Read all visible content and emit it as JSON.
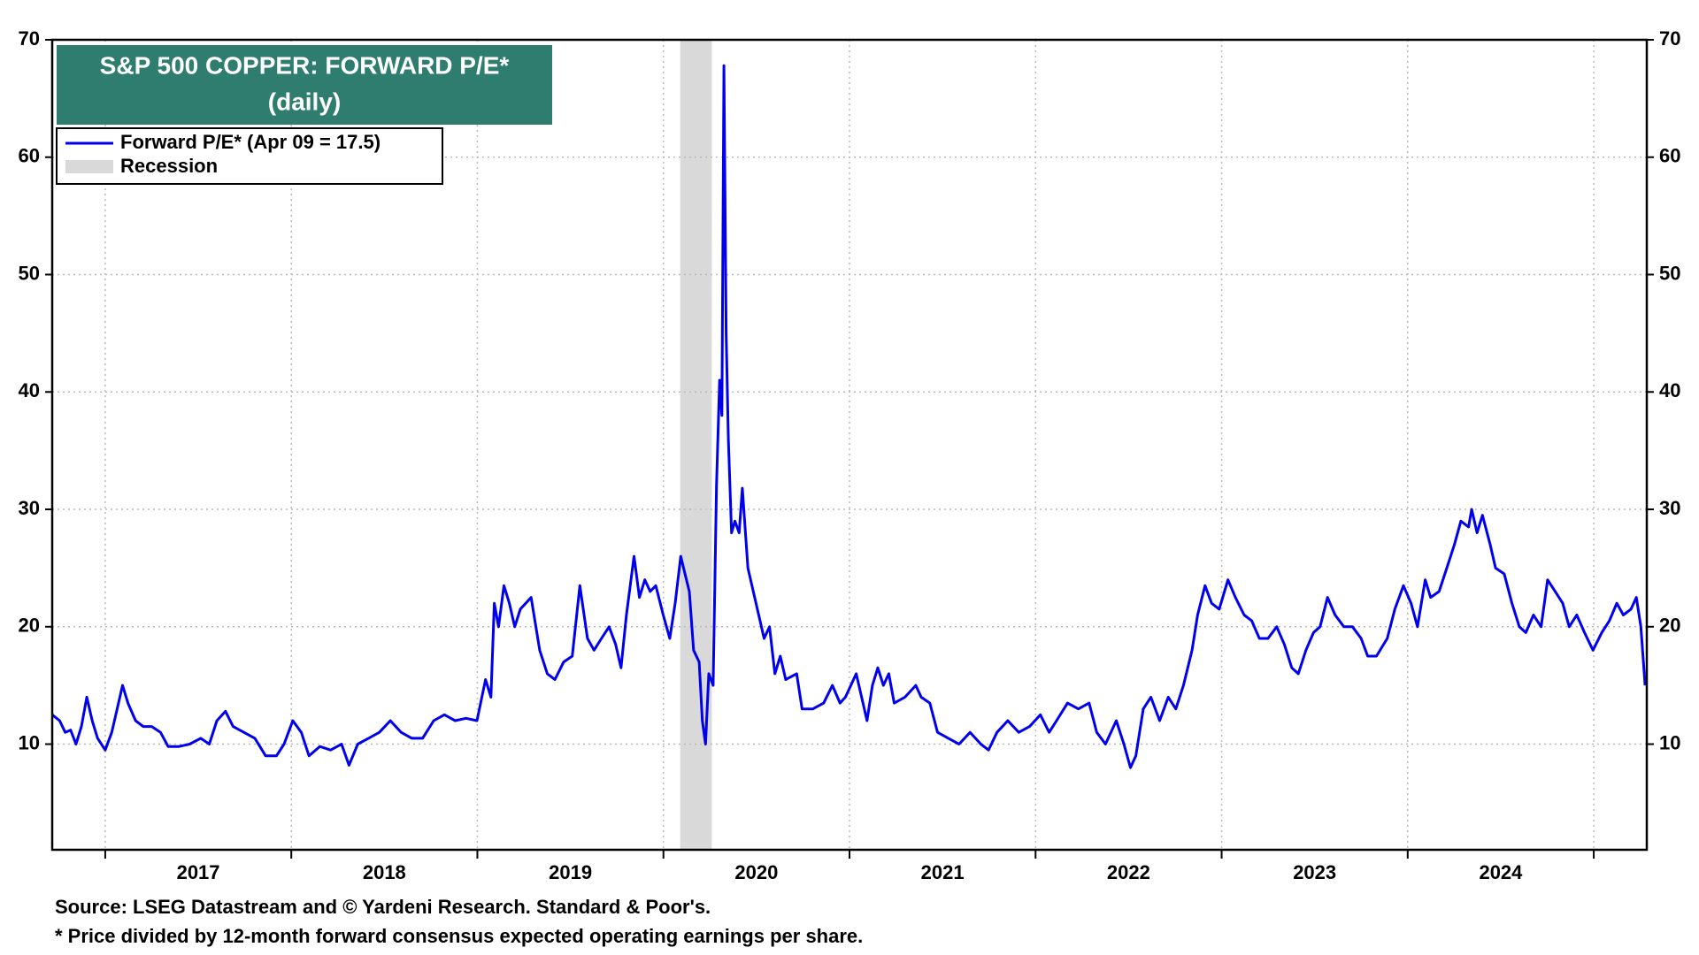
{
  "chart_data": {
    "type": "line",
    "title": "S&P 500 COPPER: FORWARD P/E*",
    "subtitle": "(daily)",
    "source": "Source: LSEG Datastream and © Yardeni Research. Standard & Poor's.",
    "note": "* Price divided by 12-month forward consensus expected operating earnings per share.",
    "legend": "top-left",
    "grid": true,
    "xlim": [
      2016.715,
      2025.285
    ],
    "xgrid": [
      2017,
      2018,
      2019,
      2020,
      2021,
      2022,
      2023,
      2024,
      2025
    ],
    "xticks": [
      {
        "value": 2017.5,
        "label": "2017"
      },
      {
        "value": 2018.5,
        "label": "2018"
      },
      {
        "value": 2019.5,
        "label": "2019"
      },
      {
        "value": 2020.5,
        "label": "2020"
      },
      {
        "value": 2021.5,
        "label": "2021"
      },
      {
        "value": 2022.5,
        "label": "2022"
      },
      {
        "value": 2023.5,
        "label": "2023"
      },
      {
        "value": 2024.5,
        "label": "2024"
      }
    ],
    "ylim": [
      1,
      70
    ],
    "yticks": [
      10,
      20,
      30,
      40,
      50,
      60,
      70
    ],
    "y2lim": [
      1,
      70
    ],
    "y2ticks": [
      10,
      20,
      30,
      40,
      50,
      60,
      70
    ],
    "recession": {
      "name": "Recession",
      "color": "#d9d9d9",
      "x": [
        2020.09,
        2020.26
      ]
    },
    "x": [
      2016.715,
      2016.755,
      2016.785,
      2016.814,
      2016.843,
      2016.872,
      2016.901,
      2016.93,
      2016.959,
      2017.0,
      2017.035,
      2017.064,
      2017.093,
      2017.122,
      2017.163,
      2017.204,
      2017.25,
      2017.297,
      2017.338,
      2017.396,
      2017.454,
      2017.513,
      2017.559,
      2017.6,
      2017.646,
      2017.687,
      2017.745,
      2017.804,
      2017.862,
      2017.92,
      2017.961,
      2018.008,
      2018.054,
      2018.095,
      2018.153,
      2018.211,
      2018.27,
      2018.31,
      2018.357,
      2018.415,
      2018.473,
      2018.532,
      2018.59,
      2018.648,
      2018.706,
      2018.765,
      2018.823,
      2018.881,
      2018.939,
      2018.998,
      2019.044,
      2019.073,
      2019.091,
      2019.114,
      2019.143,
      2019.172,
      2019.201,
      2019.231,
      2019.289,
      2019.335,
      2019.376,
      2019.417,
      2019.464,
      2019.51,
      2019.551,
      2019.592,
      2019.627,
      2019.667,
      2019.708,
      2019.743,
      2019.772,
      2019.801,
      2019.842,
      2019.871,
      2019.9,
      2019.929,
      2019.959,
      2019.999,
      2020.034,
      2020.063,
      2020.093,
      2020.116,
      2020.139,
      2020.162,
      2020.192,
      2020.209,
      2020.226,
      2020.244,
      2020.267,
      2020.285,
      2020.302,
      2020.314,
      2020.325,
      2020.337,
      2020.349,
      2020.366,
      2020.384,
      2020.407,
      2020.424,
      2020.454,
      2020.483,
      2020.512,
      2020.541,
      2020.57,
      2020.599,
      2020.628,
      2020.657,
      2020.716,
      2020.745,
      2020.803,
      2020.861,
      2020.908,
      2020.949,
      2020.978,
      2021.036,
      2021.065,
      2021.094,
      2021.123,
      2021.152,
      2021.182,
      2021.211,
      2021.24,
      2021.298,
      2021.356,
      2021.385,
      2021.432,
      2021.473,
      2021.531,
      2021.589,
      2021.648,
      2021.706,
      2021.747,
      2021.793,
      2021.851,
      2021.91,
      2021.968,
      2022.026,
      2022.073,
      2022.113,
      2022.172,
      2022.23,
      2022.288,
      2022.329,
      2022.376,
      2022.434,
      2022.475,
      2022.51,
      2022.539,
      2022.579,
      2022.62,
      2022.667,
      2022.713,
      2022.754,
      2022.795,
      2022.841,
      2022.871,
      2022.911,
      2022.946,
      2022.987,
      2023.034,
      2023.074,
      2023.121,
      2023.162,
      2023.203,
      2023.249,
      2023.296,
      2023.337,
      2023.377,
      2023.412,
      2023.453,
      2023.494,
      2023.529,
      2023.569,
      2023.61,
      2023.657,
      2023.703,
      2023.75,
      2023.785,
      2023.832,
      2023.89,
      2023.931,
      2023.977,
      2024.018,
      2024.053,
      2024.094,
      2024.123,
      2024.169,
      2024.21,
      2024.251,
      2024.286,
      2024.327,
      2024.344,
      2024.373,
      2024.402,
      2024.443,
      2024.472,
      2024.519,
      2024.56,
      2024.6,
      2024.635,
      2024.676,
      2024.717,
      2024.752,
      2024.793,
      2024.833,
      2024.868,
      2024.909,
      2024.95,
      2024.996,
      2025.043,
      2025.084,
      2025.124,
      2025.159,
      2025.2,
      2025.229,
      2025.253,
      2025.276
    ],
    "series": [
      {
        "name": "Forward P/E* (Apr 09 = 17.5)",
        "color": "#0000ee",
        "values": [
          12.5,
          12,
          11,
          11.2,
          10,
          11.5,
          14,
          12,
          10.5,
          9.5,
          11,
          13,
          15,
          13.5,
          12,
          11.5,
          11.5,
          11,
          9.8,
          9.8,
          10,
          10.5,
          10,
          12,
          12.8,
          11.5,
          11,
          10.5,
          9,
          9,
          10,
          12,
          11,
          9,
          9.8,
          9.5,
          10,
          8.2,
          10,
          10.5,
          11,
          12,
          11,
          10.5,
          10.5,
          12,
          12.5,
          12,
          12.2,
          12,
          15.5,
          14,
          22,
          20,
          23.5,
          22,
          20,
          21.5,
          22.5,
          18,
          16,
          15.5,
          17,
          17.5,
          23.5,
          19,
          18,
          19,
          20,
          18.5,
          16.5,
          21,
          26,
          22.5,
          24,
          23,
          23.5,
          21,
          19,
          22,
          26,
          24.5,
          23,
          18,
          17,
          12,
          10,
          16,
          15,
          32,
          41,
          38,
          67.8,
          45,
          36,
          28,
          29,
          28,
          31.8,
          25,
          23,
          21,
          19,
          20,
          16,
          17.5,
          15.5,
          16,
          13,
          13,
          13.5,
          15,
          13.5,
          14,
          16,
          14,
          12,
          15,
          16.5,
          15,
          16,
          13.5,
          14,
          15,
          14,
          13.5,
          11,
          10.5,
          10,
          11,
          10,
          9.5,
          11,
          12,
          11,
          11.5,
          12.5,
          11,
          12,
          13.5,
          13,
          13.5,
          11,
          10,
          12,
          10,
          8,
          9,
          13,
          14,
          12,
          14,
          13,
          15,
          18,
          21,
          23.5,
          22,
          21.5,
          24,
          22.5,
          21,
          20.5,
          19,
          19,
          20,
          18.5,
          16.5,
          16,
          18,
          19.5,
          20,
          22.5,
          21,
          20,
          20,
          19,
          17.5,
          17.5,
          19,
          21.5,
          23.5,
          22,
          20,
          24,
          22.5,
          23,
          25,
          27,
          29,
          28.5,
          30,
          28,
          29.5,
          27,
          25,
          24.5,
          22,
          20,
          19.5,
          21,
          20,
          24,
          23,
          22,
          20,
          21,
          19.5,
          18,
          19.5,
          20.5,
          22,
          21,
          21.5,
          22.5,
          20,
          15
        ]
      }
    ]
  }
}
